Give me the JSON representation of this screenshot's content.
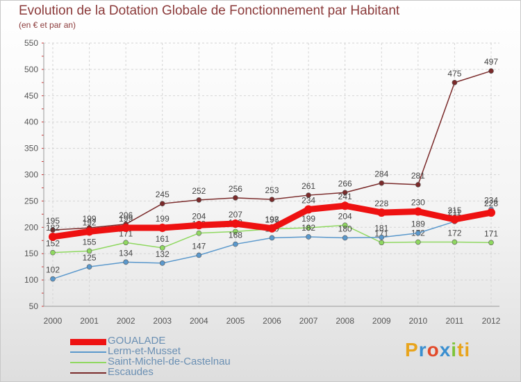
{
  "logo": {
    "p1": "P",
    "p2": "r",
    "p3": "o",
    "p4": "x",
    "p5": "i",
    "p6": "ti"
  },
  "chart_data": {
    "type": "line",
    "title": "Evolution de la Dotation Globale de Fonctionnement par Habitant",
    "subtitle": "(en € et par an)",
    "xlabel": "",
    "ylabel": "",
    "ylim": [
      50,
      550
    ],
    "yticks": [
      50,
      100,
      150,
      200,
      250,
      300,
      350,
      400,
      450,
      500,
      550
    ],
    "grid": true,
    "legend_position": "bottom-left",
    "categories": [
      "2000",
      "2001",
      "2002",
      "2003",
      "2004",
      "2005",
      "2006",
      "2007",
      "2008",
      "2009",
      "2010",
      "2011",
      "2012"
    ],
    "series": [
      {
        "name": "Escaudes",
        "color": "#7a2a2a",
        "values": [
          195,
          199,
          206,
          245,
          252,
          256,
          253,
          261,
          266,
          284,
          281,
          475,
          497
        ]
      },
      {
        "name": "Saint-Michel-de-Castelnau",
        "color": "#8fd860",
        "values": [
          152,
          155,
          171,
          161,
          189,
          192,
          197,
          199,
          204,
          171,
          172,
          172,
          171
        ]
      },
      {
        "name": "Lerm-et-Musset",
        "color": "#5a98cc",
        "values": [
          102,
          125,
          134,
          132,
          147,
          168,
          180,
          182,
          180,
          181,
          189,
          211,
          234
        ]
      },
      {
        "name": "GOUALADE",
        "color": "#ee1111",
        "values": [
          182,
          192,
          199,
          199,
          204,
          207,
          198,
          234,
          241,
          228,
          230,
          215,
          228
        ]
      }
    ],
    "legend_order": [
      "GOUALADE",
      "Lerm-et-Musset",
      "Saint-Michel-de-Castelnau",
      "Escaudes"
    ]
  }
}
